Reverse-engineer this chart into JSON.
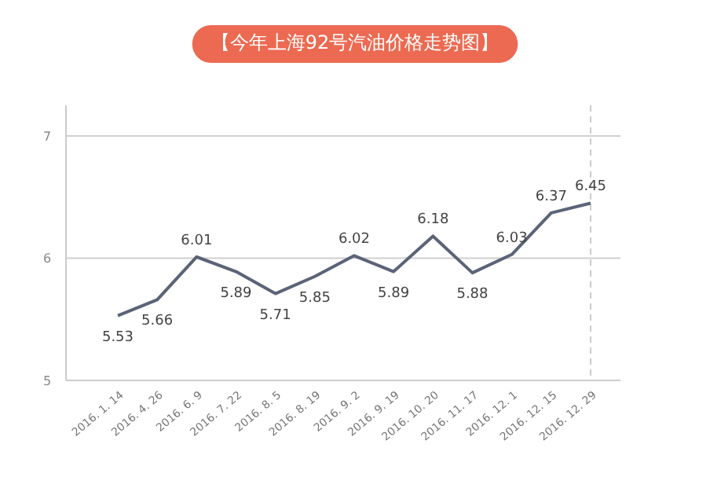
{
  "chart_data": {
    "type": "line",
    "title": "【今年上海92号汽油价格走势图】",
    "categories": [
      "2016. 1. 14",
      "2016. 4. 26",
      "2016. 6. 9",
      "2016. 7. 22",
      "2016. 8. 5",
      "2016. 8. 19",
      "2016. 9. 2",
      "2016. 9. 19",
      "2016. 10. 20",
      "2016. 11. 17",
      "2016. 12. 1",
      "2016. 12. 15",
      "2016. 12. 29"
    ],
    "series": [
      {
        "color": "#5b6477",
        "values": [
          5.53,
          5.66,
          6.01,
          5.89,
          5.71,
          5.85,
          6.02,
          5.89,
          6.18,
          5.88,
          6.03,
          6.37,
          6.45
        ]
      }
    ],
    "ylim": [
      5,
      7.25
    ],
    "yticks": [
      5,
      6,
      7
    ],
    "grid": "y",
    "data_labels": true,
    "marker": "none",
    "line_style": "solid",
    "ref_lines": [
      {
        "axis": "x",
        "value": "2016. 12. 29",
        "color": "#cccccc",
        "line_style": "dashed"
      }
    ]
  }
}
